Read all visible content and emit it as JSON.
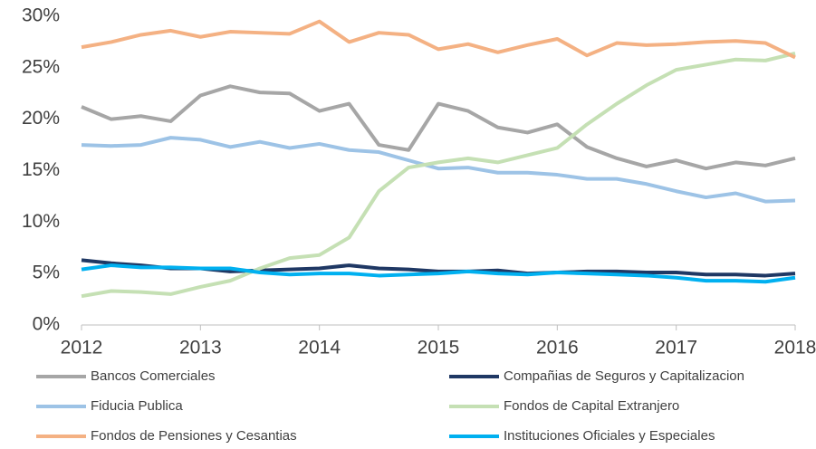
{
  "chart_data": {
    "type": "line",
    "x": [
      2012,
      2012.25,
      2012.5,
      2012.75,
      2013,
      2013.25,
      2013.5,
      2013.75,
      2014,
      2014.25,
      2014.5,
      2014.75,
      2015,
      2015.25,
      2015.5,
      2015.75,
      2016,
      2016.25,
      2016.5,
      2016.75,
      2017,
      2017.25,
      2017.5,
      2017.75,
      2018
    ],
    "series": [
      {
        "name": "Bancos Comerciales",
        "color": "#a6a6a6",
        "values": [
          21.2,
          20.0,
          20.3,
          19.8,
          22.3,
          23.2,
          22.6,
          22.5,
          20.8,
          21.5,
          17.5,
          17.0,
          21.5,
          20.8,
          19.2,
          18.7,
          19.5,
          17.3,
          16.2,
          15.4,
          16.0,
          15.2,
          15.8,
          15.5,
          16.2
        ]
      },
      {
        "name": "Compañias de Seguros y Capitalizacion",
        "color": "#1f3864",
        "values": [
          6.3,
          6.0,
          5.8,
          5.5,
          5.5,
          5.2,
          5.3,
          5.4,
          5.5,
          5.8,
          5.5,
          5.4,
          5.2,
          5.2,
          5.3,
          5.0,
          5.1,
          5.2,
          5.2,
          5.1,
          5.1,
          4.9,
          4.9,
          4.8,
          5.0
        ]
      },
      {
        "name": "Fiducia Publica",
        "color": "#9dc3e6",
        "values": [
          17.5,
          17.4,
          17.5,
          18.2,
          18.0,
          17.3,
          17.8,
          17.2,
          17.6,
          17.0,
          16.8,
          16.0,
          15.2,
          15.3,
          14.8,
          14.8,
          14.6,
          14.2,
          14.2,
          13.7,
          13.0,
          12.4,
          12.8,
          12.0,
          12.1
        ]
      },
      {
        "name": "Fondos de Capital Extranjero",
        "color": "#c5e0b4",
        "values": [
          2.8,
          3.3,
          3.2,
          3.0,
          3.7,
          4.3,
          5.5,
          6.5,
          6.8,
          8.5,
          13.0,
          15.3,
          15.8,
          16.2,
          15.8,
          16.5,
          17.2,
          19.5,
          21.5,
          23.3,
          24.8,
          25.3,
          25.8,
          25.7,
          26.4
        ]
      },
      {
        "name": "Fondos de Pensiones y Cesantias",
        "color": "#f4b183",
        "values": [
          27.0,
          27.5,
          28.2,
          28.6,
          28.0,
          28.5,
          28.4,
          28.3,
          29.5,
          27.5,
          28.4,
          28.2,
          26.8,
          27.3,
          26.5,
          27.2,
          27.8,
          26.2,
          27.4,
          27.2,
          27.3,
          27.5,
          27.6,
          27.4,
          26.0
        ]
      },
      {
        "name": "Instituciones Oficiales y Especiales",
        "color": "#00b0f0",
        "values": [
          5.4,
          5.8,
          5.6,
          5.6,
          5.5,
          5.5,
          5.1,
          4.9,
          5.0,
          5.0,
          4.8,
          4.9,
          5.0,
          5.2,
          5.0,
          4.9,
          5.1,
          5.0,
          4.9,
          4.8,
          4.6,
          4.3,
          4.3,
          4.2,
          4.6
        ]
      }
    ],
    "xlim": [
      2012,
      2018
    ],
    "xticks": [
      2012,
      2013,
      2014,
      2015,
      2016,
      2017,
      2018
    ],
    "ylim": [
      0,
      30
    ],
    "yticks": [
      {
        "value": 0,
        "label": "0%"
      },
      {
        "value": 5,
        "label": "5%"
      },
      {
        "value": 10,
        "label": "10%"
      },
      {
        "value": 15,
        "label": "15%"
      },
      {
        "value": 20,
        "label": "20%"
      },
      {
        "value": 25,
        "label": "25%"
      },
      {
        "value": 30,
        "label": "30%"
      }
    ],
    "grid": false,
    "legend": "bottom"
  }
}
